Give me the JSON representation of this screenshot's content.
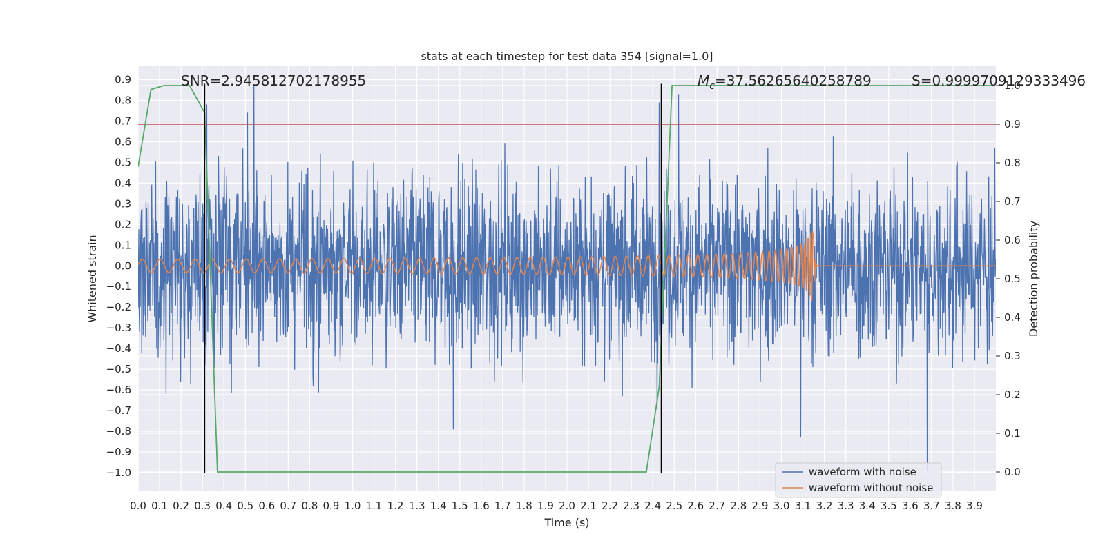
{
  "chart_data": {
    "type": "line",
    "title": "stats at each timestep for test data 354 [signal=1.0]",
    "xlabel": "Time (s)",
    "ylabel": "Whitened strain",
    "y2label": "Detection probability",
    "xlim": [
      0.0,
      4.0
    ],
    "ylim": [
      -1.09,
      0.965
    ],
    "y2lim": [
      -0.05,
      1.05
    ],
    "grid": true,
    "legend_placement": "lower-right",
    "x_ticks": [
      "0.0",
      "0.1",
      "0.2",
      "0.3",
      "0.4",
      "0.5",
      "0.6",
      "0.7",
      "0.8",
      "0.9",
      "1.0",
      "1.1",
      "1.2",
      "1.3",
      "1.4",
      "1.5",
      "1.6",
      "1.7",
      "1.8",
      "1.9",
      "2.0",
      "2.1",
      "2.2",
      "2.3",
      "2.4",
      "2.5",
      "2.6",
      "2.7",
      "2.8",
      "2.9",
      "3.0",
      "3.1",
      "3.2",
      "3.3",
      "3.4",
      "3.5",
      "3.6",
      "3.7",
      "3.8",
      "3.9"
    ],
    "y_ticks": [
      "0.9",
      "0.8",
      "0.7",
      "0.6",
      "0.5",
      "0.4",
      "0.3",
      "0.2",
      "0.1",
      "0.0",
      "−0.1",
      "−0.2",
      "−0.3",
      "−0.4",
      "−0.5",
      "−0.6",
      "−0.7",
      "−0.8",
      "−0.9",
      "−1.0"
    ],
    "y2_ticks": [
      "1.0",
      "0.9",
      "0.8",
      "0.7",
      "0.6",
      "0.5",
      "0.4",
      "0.3",
      "0.2",
      "0.1",
      "0.0"
    ],
    "annotations": {
      "snr": "SNR=2.945812702178955",
      "mc_symbol": "M",
      "mc_sub": "c",
      "mc_value": "=37.56265640258789",
      "s": "S=0.9999709129333496"
    },
    "series": [
      {
        "name": "waveform with noise",
        "color": "#4c72b0",
        "kind": "noise",
        "amplitude_envelope": 0.35,
        "notable_peaks": [
          {
            "x": 0.32,
            "y": 0.78
          },
          {
            "x": 0.51,
            "y": 0.74
          },
          {
            "x": 0.54,
            "y": 0.87
          },
          {
            "x": 2.43,
            "y": 0.79
          },
          {
            "x": 2.52,
            "y": 0.83
          },
          {
            "x": 0.13,
            "y": -0.62
          },
          {
            "x": 0.35,
            "y": -0.41
          },
          {
            "x": 1.47,
            "y": -0.79
          },
          {
            "x": 3.09,
            "y": -0.83
          },
          {
            "x": 3.68,
            "y": -0.99
          }
        ]
      },
      {
        "name": "waveform without noise",
        "color": "#dd8452",
        "kind": "chirp",
        "merger_time": 3.15,
        "peak_amplitude": 0.17
      }
    ],
    "detection_probability": {
      "color": "#55a868",
      "x": [
        0.0,
        0.06,
        0.12,
        0.24,
        0.31,
        0.37,
        0.44,
        1.7,
        1.75,
        2.37,
        2.43,
        2.49,
        3.99
      ],
      "y": [
        0.79,
        0.99,
        1.0,
        1.0,
        0.93,
        0.0,
        0.0,
        0.0,
        0.0,
        0.0,
        0.22,
        1.0,
        1.0
      ]
    },
    "threshold": {
      "value": 0.9,
      "color": "#c44e52"
    },
    "vertical_markers": {
      "x": [
        0.31,
        2.44
      ],
      "y_range": [
        -1.0,
        0.88
      ],
      "color": "#000000"
    }
  }
}
